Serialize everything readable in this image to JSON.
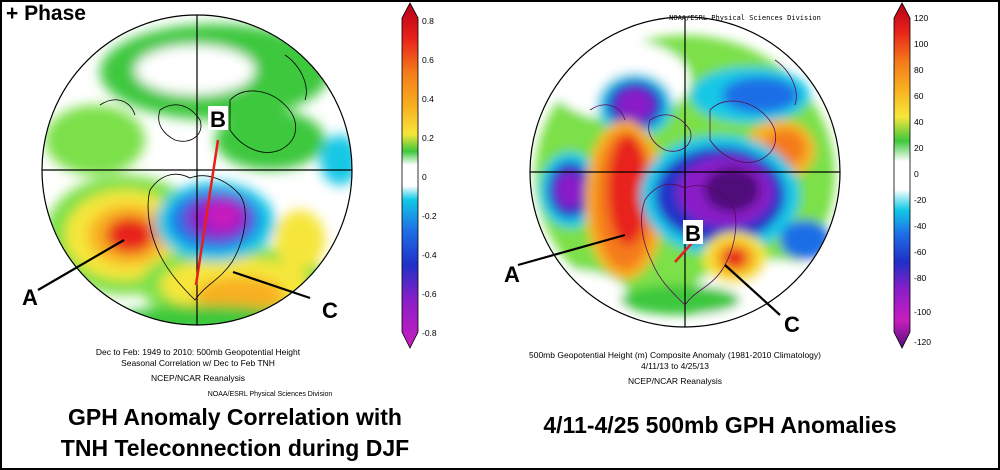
{
  "phase_label": "+ Phase",
  "left_panel": {
    "point_labels": [
      "A",
      "B",
      "C"
    ],
    "caption_lines": [
      "Dec to Feb: 1949 to 2010: 500mb Geopotential Height",
      "Seasonal Correlation w/ Dec to Feb TNH",
      "NCEP/NCAR Reanalysis",
      "NOAA/ESRL Physical Sciences Division"
    ],
    "colorbar_ticks": [
      "0.8",
      "0.6",
      "0.4",
      "0.2",
      "0",
      "-0.2",
      "-0.4",
      "-0.6",
      "-0.8"
    ],
    "title_lines": [
      "GPH Anomaly Correlation with",
      "TNH Teleconnection during DJF"
    ]
  },
  "right_panel": {
    "credit": "NOAA/ESRL Physical Sciences Division",
    "point_labels": [
      "A",
      "B",
      "C"
    ],
    "caption_lines": [
      "500mb Geopotential Height (m) Composite Anomaly (1981-2010 Climatology)",
      "4/11/13  to 4/25/13",
      "NCEP/NCAR Reanalysis"
    ],
    "colorbar_ticks": [
      "120",
      "100",
      "80",
      "60",
      "40",
      "20",
      "0",
      "-20",
      "-40",
      "-60",
      "-80",
      "-100",
      "-120"
    ],
    "title": "4/11-4/25 500mb GPH Anomalies"
  },
  "colors": {
    "dark_red": "#b3001a",
    "red": "#e8201a",
    "orange": "#f47a1a",
    "yellow_orange": "#f8b020",
    "yellow": "#f6e63a",
    "green": "#3ec83e",
    "light_green": "#7ce04a",
    "cyan": "#12c8e6",
    "blue": "#1e6ee6",
    "dark_blue": "#2030c8",
    "purple": "#8a1ec8",
    "magenta": "#c81ebe",
    "dark_purple": "#50107a"
  }
}
